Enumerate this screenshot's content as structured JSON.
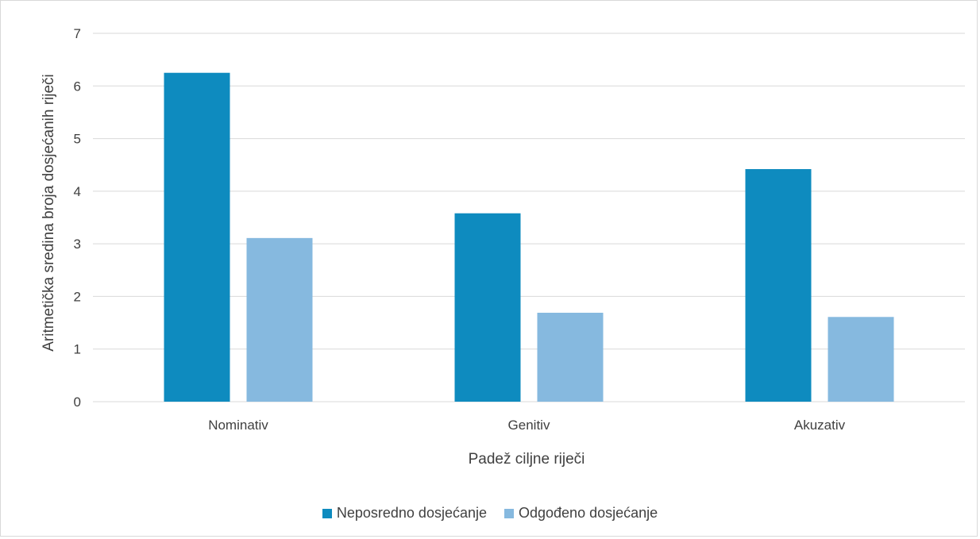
{
  "chart_data": {
    "type": "bar",
    "categories": [
      "Nominativ",
      "Genitiv",
      "Akuzativ"
    ],
    "series": [
      {
        "name": "Neposredno dosjećanje",
        "values": [
          6.25,
          3.58,
          4.42
        ],
        "color": "#0e8bbf"
      },
      {
        "name": "Odgođeno dosjećanje",
        "values": [
          3.11,
          1.69,
          1.61
        ],
        "color": "#86b9df"
      }
    ],
    "xlabel": "Padež ciljne riječi",
    "ylabel": "Aritmetička sredina broja dosjećanih riječi",
    "ylim": [
      0,
      7
    ],
    "yticks": [
      0,
      1,
      2,
      3,
      4,
      5,
      6,
      7
    ],
    "grid": true,
    "legend_position": "bottom",
    "gridline_color": "#d9d9d9"
  }
}
